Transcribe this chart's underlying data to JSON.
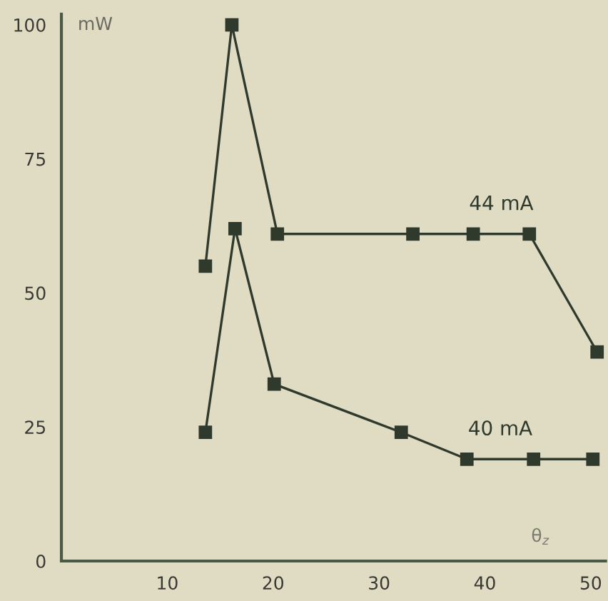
{
  "chart_data": {
    "type": "line",
    "xlabel": "θ$_{z}$",
    "ylabel": "mW",
    "xlim": [
      0,
      51.4
    ],
    "ylim": [
      0,
      102
    ],
    "xticks": [
      10,
      20,
      30,
      40,
      50
    ],
    "yticks": [
      0,
      25,
      50,
      75,
      100
    ],
    "marker": "square",
    "line_style": "solid",
    "grid": false,
    "legend": false,
    "series": [
      {
        "name": "44 mA",
        "color": "#2f3a2c",
        "x": [
          13.6,
          16.1,
          20.4,
          33.2,
          38.9,
          44.2,
          50.6
        ],
        "values": [
          55,
          100,
          61,
          61,
          61,
          61,
          39
        ]
      },
      {
        "name": "40 mA",
        "color": "#2f3a2c",
        "x": [
          13.6,
          16.4,
          20.1,
          32.1,
          38.3,
          44.6,
          50.2
        ],
        "values": [
          24,
          62,
          33,
          24,
          19,
          19,
          19
        ]
      }
    ]
  }
}
